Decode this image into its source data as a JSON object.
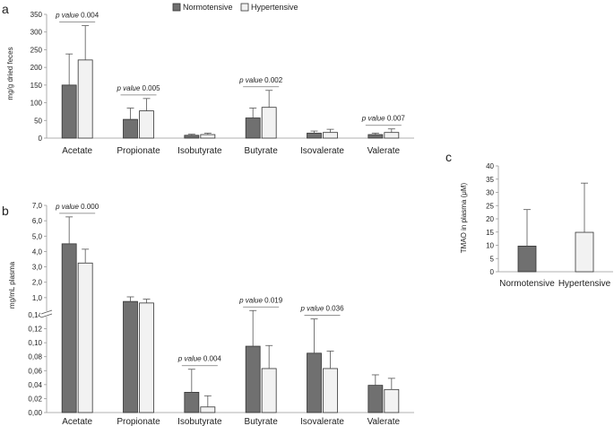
{
  "legend": [
    "Normotensive",
    "Hypertensive"
  ],
  "colors": {
    "normotensive": "#707070",
    "hypertensive": "#f2f2f2",
    "stroke": "#333333",
    "axis": "#999999"
  },
  "chart_data": [
    {
      "panel": "a",
      "type": "bar",
      "ylabel": "mg/g dried feces",
      "ylim": [
        0,
        350
      ],
      "yticks": [
        0,
        50,
        100,
        150,
        200,
        250,
        300,
        350
      ],
      "categories": [
        "Acetate",
        "Propionate",
        "Isobutyrate",
        "Butyrate",
        "Isovalerate",
        "Valerate"
      ],
      "series": [
        {
          "name": "Normotensive",
          "values": [
            150,
            53,
            8,
            57,
            14,
            10
          ],
          "errors": [
            88,
            32,
            3,
            28,
            6,
            4
          ]
        },
        {
          "name": "Hypertensive",
          "values": [
            221,
            77,
            10,
            87,
            16,
            16
          ],
          "errors": [
            97,
            35,
            4,
            48,
            9,
            10
          ]
        }
      ],
      "annotations": [
        {
          "category": 0,
          "label": "p value",
          "value": "0.004"
        },
        {
          "category": 1,
          "label": "p value",
          "value": "0.005"
        },
        {
          "category": 3,
          "label": "p value",
          "value": "0.002"
        },
        {
          "category": 5,
          "label": "p value",
          "value": "0.007"
        }
      ]
    },
    {
      "panel": "b",
      "type": "bar",
      "ylabel": "mg/mL plasma",
      "broken_axis": true,
      "ylim_lower": [
        0,
        0.14
      ],
      "ylim_upper": [
        0,
        7
      ],
      "yticks_lower": [
        "0,00",
        "0,02",
        "0,04",
        "0,06",
        "0,08",
        "0,10",
        "0,12",
        "0,14"
      ],
      "yticks_upper": [
        "1,0",
        "2,0",
        "3,0",
        "4,0",
        "5,0",
        "6,0",
        "7,0"
      ],
      "categories": [
        "Acetate",
        "Propionate",
        "Isobutyrate",
        "Butyrate",
        "Isovalerate",
        "Valerate"
      ],
      "series": [
        {
          "name": "Normotensive",
          "values": [
            4.5,
            0.75,
            0.029,
            0.095,
            0.085,
            0.039
          ],
          "errors": [
            1.75,
            0.3,
            0.033,
            0.065,
            0.049,
            0.015
          ]
        },
        {
          "name": "Hypertensive",
          "values": [
            3.25,
            0.65,
            0.008,
            0.063,
            0.063,
            0.033
          ],
          "errors": [
            0.9,
            0.25,
            0.016,
            0.033,
            0.025,
            0.016
          ]
        }
      ],
      "annotations": [
        {
          "category": 0,
          "label": "p value",
          "value": "0.000"
        },
        {
          "category": 2,
          "label": "p value",
          "value": "0.004"
        },
        {
          "category": 3,
          "label": "p value",
          "value": "0.019"
        },
        {
          "category": 4,
          "label": "p value",
          "value": "0.036"
        }
      ]
    },
    {
      "panel": "c",
      "type": "bar",
      "ylabel": "TMAO in plasma (μM)",
      "ylim": [
        0,
        40
      ],
      "yticks": [
        0,
        5,
        10,
        15,
        20,
        25,
        30,
        35,
        40
      ],
      "categories": [
        "Normotensive",
        "Hypertensive"
      ],
      "values": [
        9.7,
        14.9
      ],
      "errors": [
        13.8,
        18.6
      ]
    }
  ]
}
